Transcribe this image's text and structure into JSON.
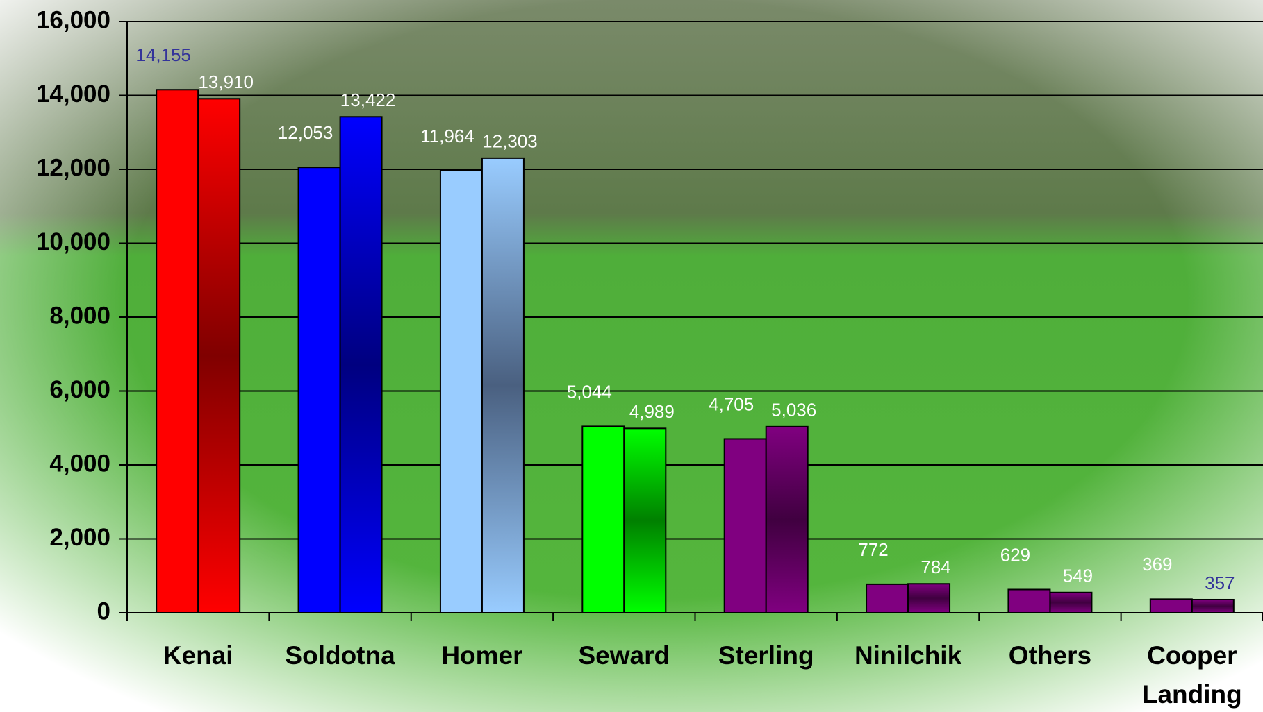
{
  "chart_data": {
    "type": "bar",
    "categories": [
      "Kenai",
      "Soldotna",
      "Homer",
      "Seward",
      "Sterling",
      "Ninilchik",
      "Others",
      "Cooper Landing"
    ],
    "series": [
      {
        "values": [
          14155,
          12053,
          11964,
          5044,
          4705,
          772,
          629,
          369
        ],
        "value_labels": [
          "14,155",
          "12,053",
          "11,964",
          "5,044",
          "4,705",
          "772",
          "629",
          "369"
        ],
        "colors": [
          "#ff0000",
          "#0000ff",
          "#99ccff",
          "#00ff00",
          "#800080",
          "#800080",
          "#800080",
          "#800080"
        ],
        "label_colors": [
          "#33339a",
          "#ffffff",
          "#ffffff",
          "#ffffff",
          "#ffffff",
          "#ffffff",
          "#ffffff",
          "#ffffff"
        ]
      },
      {
        "values": [
          13910,
          13422,
          12303,
          4989,
          5036,
          784,
          549,
          357
        ],
        "value_labels": [
          "13,910",
          "13,422",
          "12,303",
          "4,989",
          "5,036",
          "784",
          "549",
          "357"
        ],
        "colors": [
          "#ff0000",
          "#0000ff",
          "#99ccff",
          "#00ff00",
          "#800080",
          "#800080",
          "#800080",
          "#800080"
        ],
        "gradient_colors": [
          "#800000",
          "#000080",
          "#4a6080",
          "#008000",
          "#400040",
          "#400040",
          "#400040",
          "#400040"
        ],
        "label_colors": [
          "#ffffff",
          "#ffffff",
          "#ffffff",
          "#ffffff",
          "#ffffff",
          "#ffffff",
          "#ffffff",
          "#33339a"
        ]
      }
    ],
    "ylim": [
      0,
      16000
    ],
    "yticks": [
      0,
      {
        "value": 2000,
        "label": "2,000"
      },
      {
        "value": 4000,
        "label": "4,000"
      },
      {
        "value": 6000,
        "label": "6,000"
      },
      {
        "value": 8000,
        "label": "8,000"
      },
      {
        "value": 10000,
        "label": "10,000"
      },
      {
        "value": 12000,
        "label": "12,000"
      },
      {
        "value": 14000,
        "label": "14,000"
      },
      {
        "value": 16000,
        "label": "16,000"
      }
    ],
    "grid": true
  }
}
